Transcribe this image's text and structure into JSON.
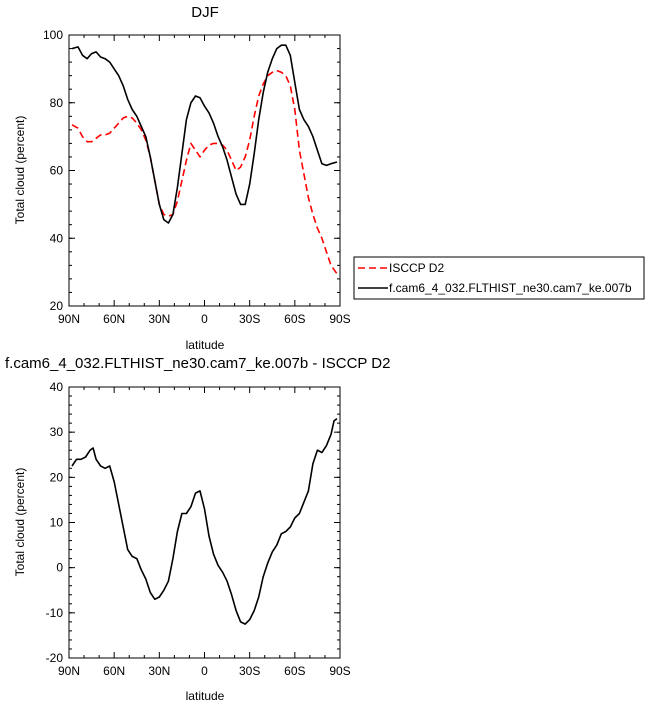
{
  "chart_data": [
    {
      "type": "line",
      "title": "DJF",
      "xlabel": "latitude",
      "ylabel": "Total cloud (percent)",
      "xlim": [
        90,
        -90
      ],
      "ylim": [
        20,
        100
      ],
      "x_ticks": [
        90,
        60,
        30,
        0,
        -30,
        -60,
        -90
      ],
      "x_tick_labels": [
        "90N",
        "60N",
        "30N",
        "0",
        "30S",
        "60S",
        "90S"
      ],
      "y_ticks": [
        20,
        40,
        60,
        80,
        100
      ],
      "y_tick_labels": [
        "20",
        "40",
        "60",
        "80",
        "100"
      ],
      "legend_position": "right",
      "series": [
        {
          "name": "ISCCP D2",
          "color": "#ff0000",
          "style": "dashed",
          "x": [
            88,
            84,
            81,
            78,
            75,
            72,
            69,
            66,
            63,
            60,
            57,
            54,
            51,
            48,
            45,
            42,
            39,
            36,
            33,
            30,
            27,
            24,
            21,
            18,
            15,
            12,
            9,
            6,
            3,
            0,
            -3,
            -6,
            -9,
            -12,
            -15,
            -18,
            -21,
            -24,
            -27,
            -30,
            -33,
            -36,
            -39,
            -42,
            -45,
            -48,
            -51,
            -54,
            -57,
            -60,
            -63,
            -66,
            -69,
            -72,
            -75,
            -78,
            -81,
            -84,
            -88
          ],
          "y": [
            73.5,
            72.5,
            70.0,
            68.5,
            68.5,
            69.5,
            70.5,
            70.5,
            71.0,
            72.5,
            74.0,
            75.5,
            76.0,
            75.5,
            74.0,
            72.0,
            69.0,
            64.0,
            57.0,
            50.0,
            47.0,
            46.5,
            47.0,
            51.0,
            57.0,
            63.0,
            68.0,
            66.0,
            64.0,
            66.0,
            67.5,
            68.0,
            68.0,
            67.5,
            66.0,
            63.0,
            60.0,
            61.0,
            64.0,
            69.0,
            76.0,
            82.0,
            85.5,
            88.0,
            89.0,
            89.5,
            89.0,
            88.0,
            85.0,
            78.0,
            66.0,
            59.0,
            52.0,
            47.0,
            43.0,
            40.0,
            36.0,
            32.0,
            29.5
          ]
        },
        {
          "name": "f.cam6_4_032.FLTHIST_ne30.cam7_ke.007b",
          "color": "#000000",
          "style": "solid",
          "x": [
            88,
            84,
            81,
            78,
            75,
            72,
            69,
            66,
            63,
            60,
            57,
            54,
            51,
            48,
            45,
            42,
            39,
            36,
            33,
            30,
            27,
            24,
            21,
            18,
            15,
            12,
            9,
            6,
            3,
            0,
            -3,
            -6,
            -9,
            -12,
            -15,
            -18,
            -21,
            -24,
            -27,
            -30,
            -33,
            -36,
            -39,
            -42,
            -45,
            -48,
            -51,
            -54,
            -57,
            -60,
            -63,
            -66,
            -69,
            -72,
            -75,
            -78,
            -81,
            -84,
            -88
          ],
          "y": [
            96.0,
            96.5,
            94.0,
            93.0,
            94.5,
            95.0,
            93.5,
            93.0,
            92.0,
            90.0,
            88.0,
            85.0,
            81.0,
            78.0,
            76.0,
            73.0,
            70.0,
            64.0,
            57.0,
            50.0,
            45.5,
            44.5,
            47.0,
            55.0,
            65.0,
            75.0,
            80.0,
            82.0,
            81.5,
            79.0,
            77.0,
            74.0,
            70.0,
            67.0,
            63.0,
            58.0,
            53.0,
            50.0,
            50.0,
            56.0,
            65.0,
            75.0,
            83.0,
            89.0,
            93.0,
            96.0,
            97.0,
            97.0,
            94.0,
            86.0,
            78.0,
            75.0,
            73.0,
            70.0,
            66.0,
            62.0,
            61.5,
            62.0,
            62.5
          ]
        }
      ]
    },
    {
      "type": "line",
      "title": "f.cam6_4_032.FLTHIST_ne30.cam7_ke.007b - ISCCP D2",
      "xlabel": "latitude",
      "ylabel": "Total cloud (percent)",
      "xlim": [
        90,
        -90
      ],
      "ylim": [
        -20,
        40
      ],
      "x_ticks": [
        90,
        60,
        30,
        0,
        -30,
        -60,
        -90
      ],
      "x_tick_labels": [
        "90N",
        "60N",
        "30N",
        "0",
        "30S",
        "60S",
        "90S"
      ],
      "y_ticks": [
        -20,
        -10,
        0,
        10,
        20,
        30,
        40
      ],
      "y_tick_labels": [
        "-20",
        "-10",
        "0",
        "10",
        "20",
        "30",
        "40"
      ],
      "series": [
        {
          "color": "#000000",
          "style": "solid",
          "x": [
            88,
            85,
            82,
            79,
            76,
            74,
            72,
            69,
            66,
            63,
            60,
            57,
            54,
            51,
            48,
            45,
            42,
            39,
            36,
            33,
            30,
            27,
            24,
            21,
            18,
            15,
            12,
            9,
            6,
            3,
            0,
            -3,
            -6,
            -9,
            -12,
            -15,
            -18,
            -21,
            -24,
            -27,
            -30,
            -33,
            -36,
            -39,
            -42,
            -45,
            -48,
            -51,
            -54,
            -57,
            -60,
            -63,
            -66,
            -69,
            -72,
            -75,
            -78,
            -81,
            -84,
            -86,
            -88
          ],
          "y": [
            22.5,
            24.0,
            24.0,
            24.5,
            26.0,
            26.5,
            24.0,
            22.5,
            22.0,
            22.5,
            19.0,
            14.0,
            9.0,
            4.0,
            2.5,
            2.0,
            -0.5,
            -2.5,
            -5.5,
            -7.0,
            -6.5,
            -5.0,
            -3.0,
            2.0,
            8.0,
            12.0,
            12.0,
            13.5,
            16.5,
            17.0,
            13.0,
            7.0,
            3.0,
            0.5,
            -1.0,
            -3.0,
            -6.0,
            -9.5,
            -12.0,
            -12.5,
            -11.5,
            -9.5,
            -6.5,
            -2.0,
            1.0,
            3.5,
            5.0,
            7.5,
            8.0,
            9.0,
            11.0,
            12.0,
            14.5,
            17.0,
            23.0,
            26.0,
            25.5,
            27.0,
            29.5,
            32.5,
            33.0
          ]
        }
      ]
    }
  ]
}
